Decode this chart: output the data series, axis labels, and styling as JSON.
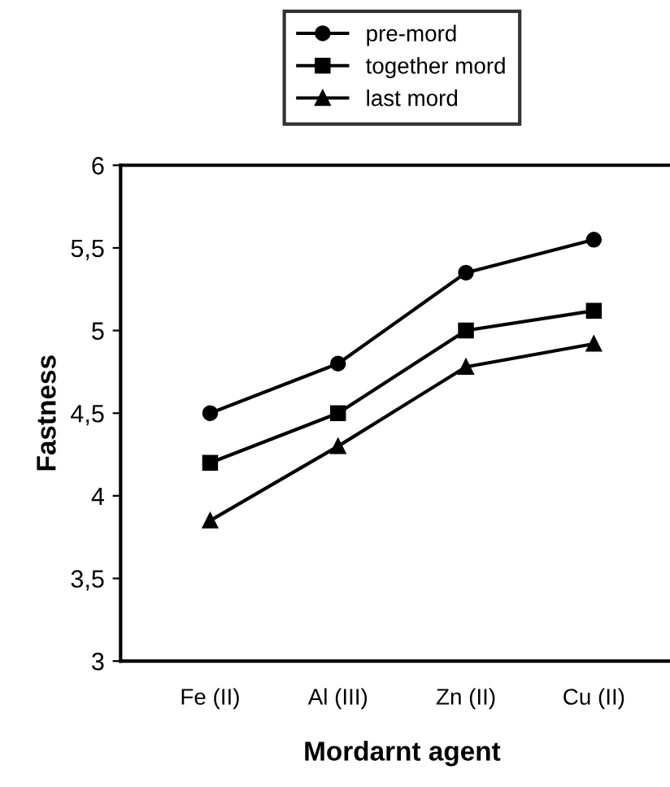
{
  "chart_data": {
    "type": "line",
    "xlabel": "Mordarnt agent",
    "ylabel": "Fastness",
    "categories": [
      "Fe (II)",
      "Al (III)",
      "Zn (II)",
      "Cu (II)"
    ],
    "series": [
      {
        "name": "pre-mord",
        "color": "#000000",
        "marker": "circle",
        "values": [
          4.5,
          4.8,
          5.35,
          5.55
        ]
      },
      {
        "name": "together mord",
        "color": "#000000",
        "marker": "square",
        "values": [
          4.2,
          4.5,
          5.0,
          5.12
        ]
      },
      {
        "name": "last mord",
        "color": "#000000",
        "marker": "triangle",
        "values": [
          3.85,
          4.3,
          4.78,
          4.92
        ]
      }
    ],
    "ylim": [
      3,
      6
    ],
    "yticks": [
      3,
      {
        "value": 3.5,
        "label": "3,5"
      },
      4,
      {
        "value": 4.5,
        "label": "4,5"
      },
      5,
      {
        "value": 5.5,
        "label": "5,5"
      },
      6
    ],
    "grid": false,
    "legend": "top",
    "line_style": "solid"
  }
}
